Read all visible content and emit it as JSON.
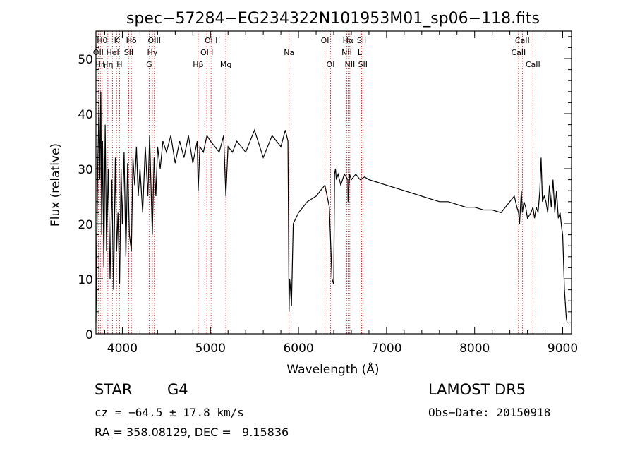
{
  "chart_data": {
    "type": "line",
    "title": "spec−57284−EG234322N101953M01_sp06−118.fits",
    "xlabel": "Wavelength (Å)",
    "ylabel": "Flux (relative)",
    "xlim": [
      3700,
      9100
    ],
    "ylim": [
      0,
      55
    ],
    "xticks": [
      4000,
      5000,
      6000,
      7000,
      8000,
      9000
    ],
    "yticks": [
      0,
      10,
      20,
      30,
      40,
      50
    ],
    "grid": false,
    "legend": "none",
    "colors": {
      "spectrum": "#000000",
      "line_markers": "#cc0000",
      "axes": "#000000"
    },
    "series": [
      {
        "x": [
          3700,
          3720,
          3735,
          3745,
          3755,
          3765,
          3775,
          3790,
          3805,
          3820,
          3840,
          3860,
          3880,
          3900,
          3920,
          3935,
          3950,
          3968,
          3985,
          4000,
          4020,
          4040,
          4060,
          4080,
          4102,
          4120,
          4140,
          4160,
          4180,
          4200,
          4230,
          4260,
          4290,
          4310,
          4340,
          4360,
          4380,
          4400,
          4430,
          4460,
          4500,
          4550,
          4600,
          4650,
          4700,
          4750,
          4800,
          4850,
          4861,
          4880,
          4920,
          4960,
          5000,
          5050,
          5100,
          5150,
          5175,
          5200,
          5250,
          5300,
          5400,
          5500,
          5600,
          5700,
          5800,
          5850,
          5880,
          5893,
          5900,
          5910,
          5920,
          5940,
          6000,
          6100,
          6200,
          6300,
          6350,
          6380,
          6400,
          6410,
          6420,
          6430,
          6450,
          6480,
          6520,
          6560,
          6563,
          6580,
          6600,
          6650,
          6700,
          6750,
          6800,
          6900,
          7000,
          7100,
          7200,
          7300,
          7400,
          7500,
          7600,
          7700,
          7800,
          7900,
          8000,
          8100,
          8200,
          8300,
          8400,
          8450,
          8480,
          8498,
          8510,
          8530,
          8542,
          8560,
          8580,
          8600,
          8640,
          8662,
          8680,
          8700,
          8720,
          8740,
          8755,
          8770,
          8790,
          8810,
          8830,
          8850,
          8870,
          8890,
          8910,
          8930,
          8950,
          8970,
          8990,
          9000,
          9020,
          9040,
          9050
        ],
        "y": [
          2,
          30,
          42,
          28,
          44,
          18,
          35,
          12,
          38,
          15,
          30,
          10,
          28,
          8,
          32,
          15,
          22,
          9,
          30,
          20,
          33,
          14,
          31,
          18,
          15,
          32,
          27,
          34,
          25,
          30,
          22,
          34,
          25,
          36,
          18,
          32,
          25,
          34,
          30,
          35,
          33,
          36,
          31,
          35,
          32,
          36,
          31,
          35,
          26,
          34,
          33,
          36,
          35,
          34,
          33,
          36,
          25,
          34,
          33,
          35,
          33,
          37,
          32,
          36,
          34,
          37,
          35,
          4,
          10,
          8,
          5,
          20,
          22,
          24,
          25,
          27,
          23,
          10,
          9,
          29,
          30,
          28,
          29,
          27,
          29,
          28,
          24,
          29,
          28,
          29,
          28,
          28.5,
          28,
          27.5,
          27,
          26.5,
          26,
          25.5,
          25,
          24.5,
          24,
          24,
          23.5,
          23,
          23,
          22.5,
          22.5,
          22,
          24,
          25,
          23,
          22,
          20,
          26,
          22,
          24,
          23,
          21,
          22,
          23,
          21,
          23,
          22,
          26,
          32,
          24,
          25,
          24,
          22,
          27,
          23,
          28,
          22,
          26,
          21,
          22,
          19,
          18,
          8,
          3,
          2
        ]
      }
    ],
    "line_markers": [
      {
        "x": 3727,
        "label": "OII",
        "row": 2
      },
      {
        "x": 3750,
        "label": "Hη",
        "row": 3
      },
      {
        "x": 3770,
        "label": "Hθ",
        "row": 1
      },
      {
        "x": 3835,
        "label": "Hη",
        "row": 3
      },
      {
        "x": 3889,
        "label": "HeI",
        "row": 2
      },
      {
        "x": 3934,
        "label": "K",
        "row": 1
      },
      {
        "x": 3968,
        "label": "H",
        "row": 3
      },
      {
        "x": 4102,
        "label": "Hδ",
        "row": 1
      },
      {
        "x": 4072,
        "label": "SII",
        "row": 2
      },
      {
        "x": 4304,
        "label": "G",
        "row": 3
      },
      {
        "x": 4340,
        "label": "Hγ",
        "row": 2
      },
      {
        "x": 4363,
        "label": "OIII",
        "row": 1
      },
      {
        "x": 4861,
        "label": "Hβ",
        "row": 3
      },
      {
        "x": 4959,
        "label": "OIII",
        "row": 2
      },
      {
        "x": 5007,
        "label": "OIII",
        "row": 1
      },
      {
        "x": 5175,
        "label": "Mg",
        "row": 3
      },
      {
        "x": 5893,
        "label": "Na",
        "row": 2
      },
      {
        "x": 6300,
        "label": "OI",
        "row": 1
      },
      {
        "x": 6364,
        "label": "OI",
        "row": 3
      },
      {
        "x": 6548,
        "label": "NII",
        "row": 2
      },
      {
        "x": 6563,
        "label": "Hα",
        "row": 1
      },
      {
        "x": 6583,
        "label": "NII",
        "row": 3
      },
      {
        "x": 6708,
        "label": "Li",
        "row": 2
      },
      {
        "x": 6717,
        "label": "SII",
        "row": 1
      },
      {
        "x": 6731,
        "label": "SII",
        "row": 3
      },
      {
        "x": 8498,
        "label": "CaII",
        "row": 2
      },
      {
        "x": 8542,
        "label": "CaII",
        "row": 1
      },
      {
        "x": 8662,
        "label": "CaII",
        "row": 3
      }
    ]
  },
  "info": {
    "object_class": "STAR",
    "subclass": "G4",
    "velocity": "cz = −64.5 ± 17.8 km/s",
    "coordinates": "RA = 358.08129, DEC =   9.15836",
    "survey": "LAMOST DR5",
    "obs_date": "Obs−Date: 20150918"
  }
}
